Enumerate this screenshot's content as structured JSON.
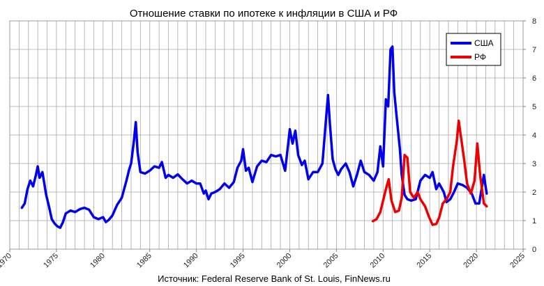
{
  "chart_data": {
    "type": "line",
    "title": "Отношение ставки по ипотеке к инфляции в США и РФ",
    "source": "Источник: Federal Reserve Bank of St. Louis, FinNews.ru",
    "xlabel": "",
    "ylabel": "",
    "xlim": [
      1970,
      2025
    ],
    "ylim": [
      0,
      8
    ],
    "x_ticks": [
      "1970",
      "1975",
      "1980",
      "1985",
      "1990",
      "1995",
      "2000",
      "2005",
      "2010",
      "2015",
      "2020",
      "2025"
    ],
    "y_ticks": [
      "0",
      "1",
      "2",
      "3",
      "4",
      "5",
      "6",
      "7",
      "8"
    ],
    "grid": true,
    "legend_position": "top-right",
    "series": [
      {
        "name": "США",
        "color": "#0000ee",
        "points": [
          [
            1971.3,
            1.45
          ],
          [
            1971.6,
            1.6
          ],
          [
            1971.9,
            2.1
          ],
          [
            1972.2,
            2.4
          ],
          [
            1972.5,
            2.2
          ],
          [
            1972.8,
            2.6
          ],
          [
            1973.0,
            2.9
          ],
          [
            1973.2,
            2.5
          ],
          [
            1973.5,
            2.7
          ],
          [
            1973.7,
            2.3
          ],
          [
            1973.9,
            1.9
          ],
          [
            1974.2,
            1.5
          ],
          [
            1974.5,
            1.05
          ],
          [
            1974.8,
            0.9
          ],
          [
            1975.1,
            0.8
          ],
          [
            1975.4,
            0.75
          ],
          [
            1975.7,
            0.95
          ],
          [
            1976.0,
            1.25
          ],
          [
            1976.5,
            1.35
          ],
          [
            1977.0,
            1.3
          ],
          [
            1977.5,
            1.4
          ],
          [
            1978.0,
            1.45
          ],
          [
            1978.5,
            1.38
          ],
          [
            1979.0,
            1.12
          ],
          [
            1979.5,
            1.05
          ],
          [
            1980.0,
            1.12
          ],
          [
            1980.3,
            0.95
          ],
          [
            1980.6,
            1.02
          ],
          [
            1981.0,
            1.18
          ],
          [
            1981.5,
            1.55
          ],
          [
            1982.0,
            1.8
          ],
          [
            1982.5,
            2.4
          ],
          [
            1982.8,
            2.8
          ],
          [
            1983.0,
            3.0
          ],
          [
            1983.3,
            3.8
          ],
          [
            1983.5,
            4.45
          ],
          [
            1983.7,
            3.4
          ],
          [
            1984.0,
            2.7
          ],
          [
            1984.5,
            2.65
          ],
          [
            1985.0,
            2.75
          ],
          [
            1985.5,
            2.9
          ],
          [
            1986.0,
            2.85
          ],
          [
            1986.3,
            3.05
          ],
          [
            1986.7,
            2.5
          ],
          [
            1987.0,
            2.6
          ],
          [
            1987.5,
            2.5
          ],
          [
            1988.0,
            2.62
          ],
          [
            1988.5,
            2.45
          ],
          [
            1989.0,
            2.3
          ],
          [
            1989.5,
            2.4
          ],
          [
            1990.0,
            2.3
          ],
          [
            1990.4,
            2.3
          ],
          [
            1990.8,
            1.95
          ],
          [
            1991.0,
            2.05
          ],
          [
            1991.3,
            1.75
          ],
          [
            1991.6,
            1.95
          ],
          [
            1992.0,
            2.0
          ],
          [
            1992.5,
            2.1
          ],
          [
            1993.0,
            2.3
          ],
          [
            1993.5,
            2.15
          ],
          [
            1994.0,
            2.35
          ],
          [
            1994.4,
            2.85
          ],
          [
            1994.8,
            3.1
          ],
          [
            1995.0,
            3.5
          ],
          [
            1995.3,
            2.75
          ],
          [
            1995.6,
            2.85
          ],
          [
            1996.0,
            2.35
          ],
          [
            1996.5,
            2.9
          ],
          [
            1997.0,
            3.1
          ],
          [
            1997.5,
            3.05
          ],
          [
            1998.0,
            3.3
          ],
          [
            1998.5,
            3.25
          ],
          [
            1999.0,
            3.3
          ],
          [
            1999.5,
            2.75
          ],
          [
            1999.8,
            3.6
          ],
          [
            2000.0,
            4.2
          ],
          [
            2000.3,
            3.7
          ],
          [
            2000.6,
            4.15
          ],
          [
            2000.9,
            3.3
          ],
          [
            2001.3,
            2.95
          ],
          [
            2001.6,
            3.1
          ],
          [
            2002.0,
            2.45
          ],
          [
            2002.5,
            2.7
          ],
          [
            2003.0,
            2.7
          ],
          [
            2003.5,
            3.0
          ],
          [
            2003.9,
            4.6
          ],
          [
            2004.1,
            5.4
          ],
          [
            2004.3,
            4.4
          ],
          [
            2004.6,
            3.15
          ],
          [
            2004.9,
            2.8
          ],
          [
            2005.2,
            2.6
          ],
          [
            2005.5,
            2.8
          ],
          [
            2006.0,
            3.0
          ],
          [
            2006.4,
            2.7
          ],
          [
            2006.8,
            2.2
          ],
          [
            2007.2,
            2.6
          ],
          [
            2007.6,
            3.1
          ],
          [
            2008.0,
            2.7
          ],
          [
            2008.5,
            2.6
          ],
          [
            2009.0,
            2.4
          ],
          [
            2009.4,
            2.7
          ],
          [
            2009.7,
            3.6
          ],
          [
            2010.0,
            2.9
          ],
          [
            2010.3,
            5.25
          ],
          [
            2010.55,
            5.0
          ],
          [
            2010.8,
            7.0
          ],
          [
            2011.0,
            7.1
          ],
          [
            2011.2,
            5.5
          ],
          [
            2011.5,
            4.5
          ],
          [
            2011.8,
            3.5
          ],
          [
            2012.0,
            2.6
          ],
          [
            2012.3,
            1.9
          ],
          [
            2012.6,
            1.75
          ],
          [
            2013.0,
            1.7
          ],
          [
            2013.5,
            1.75
          ],
          [
            2014.0,
            2.4
          ],
          [
            2014.5,
            2.6
          ],
          [
            2015.0,
            2.5
          ],
          [
            2015.3,
            2.7
          ],
          [
            2015.7,
            2.1
          ],
          [
            2016.0,
            2.3
          ],
          [
            2016.5,
            2.0
          ],
          [
            2016.8,
            1.65
          ],
          [
            2017.2,
            1.75
          ],
          [
            2017.6,
            2.0
          ],
          [
            2018.0,
            2.3
          ],
          [
            2018.5,
            2.25
          ],
          [
            2019.0,
            2.15
          ],
          [
            2019.5,
            1.95
          ],
          [
            2019.9,
            1.6
          ],
          [
            2020.3,
            1.6
          ],
          [
            2020.8,
            2.6
          ],
          [
            2021.1,
            1.95
          ]
        ]
      },
      {
        "name": "РФ",
        "color": "#ee0000",
        "points": [
          [
            2008.9,
            0.98
          ],
          [
            2009.3,
            1.05
          ],
          [
            2009.7,
            1.3
          ],
          [
            2010.0,
            1.7
          ],
          [
            2010.3,
            2.1
          ],
          [
            2010.6,
            2.45
          ],
          [
            2010.9,
            1.7
          ],
          [
            2011.3,
            1.3
          ],
          [
            2011.7,
            1.35
          ],
          [
            2012.0,
            1.8
          ],
          [
            2012.3,
            3.3
          ],
          [
            2012.6,
            3.2
          ],
          [
            2012.9,
            2.0
          ],
          [
            2013.3,
            1.8
          ],
          [
            2013.7,
            2.0
          ],
          [
            2014.0,
            1.75
          ],
          [
            2014.5,
            1.5
          ],
          [
            2014.9,
            1.15
          ],
          [
            2015.3,
            0.85
          ],
          [
            2015.7,
            0.88
          ],
          [
            2016.0,
            1.1
          ],
          [
            2016.4,
            1.6
          ],
          [
            2016.8,
            1.75
          ],
          [
            2017.2,
            2.0
          ],
          [
            2017.5,
            2.9
          ],
          [
            2017.9,
            3.8
          ],
          [
            2018.1,
            4.5
          ],
          [
            2018.4,
            3.8
          ],
          [
            2018.7,
            3.1
          ],
          [
            2019.0,
            2.3
          ],
          [
            2019.4,
            1.95
          ],
          [
            2019.8,
            2.4
          ],
          [
            2020.1,
            3.7
          ],
          [
            2020.4,
            2.6
          ],
          [
            2020.8,
            1.6
          ],
          [
            2021.1,
            1.5
          ]
        ]
      }
    ]
  }
}
